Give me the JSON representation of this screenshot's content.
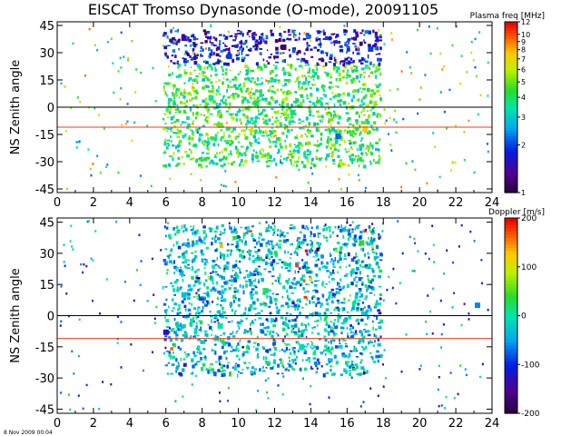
{
  "title": "EISCAT Tromso Dynasonde (O-mode),  20091105",
  "footer_stamp": "8 Nov 2009 00:04",
  "chart_data": [
    {
      "type": "heatmap",
      "name": "plasma-frequency",
      "ylabel": "NS Zenith angle",
      "xlim": [
        0,
        24
      ],
      "ylim": [
        -47,
        47
      ],
      "xticks": [
        0,
        2,
        4,
        6,
        8,
        10,
        12,
        14,
        16,
        18,
        20,
        22,
        24
      ],
      "yticks": [
        -45,
        -30,
        -15,
        0,
        15,
        30,
        45
      ],
      "reference_lines": [
        {
          "y": 0,
          "color": "#000000"
        },
        {
          "y": -11,
          "color": "#e8401a"
        }
      ],
      "colorbar": {
        "label": "Plasma freq [MHz]",
        "scale": "log",
        "range": [
          1,
          12
        ],
        "ticks": [
          1,
          2,
          3,
          4,
          5,
          6,
          7,
          8,
          9,
          10,
          12
        ]
      },
      "dense_echo_region": {
        "x": [
          5.8,
          17.8
        ],
        "y": [
          -32,
          43
        ]
      },
      "representative_cells": [
        {
          "x": 7.0,
          "y": 38,
          "value": 1.5
        },
        {
          "x": 9.5,
          "y": 28,
          "value": 2.0
        },
        {
          "x": 12.5,
          "y": 33,
          "value": 1.2
        },
        {
          "x": 8.5,
          "y": 5,
          "value": 3.5
        },
        {
          "x": 11.0,
          "y": 2,
          "value": 4.0
        },
        {
          "x": 13.0,
          "y": -3,
          "value": 3.8
        },
        {
          "x": 9.0,
          "y": -10,
          "value": 5.0
        },
        {
          "x": 15.5,
          "y": -16,
          "value": 2.2
        },
        {
          "x": 17.3,
          "y": 32,
          "value": 2.0
        },
        {
          "x": 17.0,
          "y": -12,
          "value": 7.5
        }
      ]
    },
    {
      "type": "heatmap",
      "name": "doppler",
      "ylabel": "NS Zenith angle",
      "xlim": [
        0,
        24
      ],
      "ylim": [
        -47,
        47
      ],
      "xticks": [
        0,
        2,
        4,
        6,
        8,
        10,
        12,
        14,
        16,
        18,
        20,
        22,
        24
      ],
      "yticks": [
        -45,
        -30,
        -15,
        0,
        15,
        30,
        45
      ],
      "reference_lines": [
        {
          "y": 0,
          "color": "#000000"
        },
        {
          "y": -11,
          "color": "#e8401a"
        }
      ],
      "colorbar": {
        "label": "Doppler [m/s]",
        "scale": "linear",
        "range": [
          -200,
          200
        ],
        "ticks": [
          -200,
          -100,
          0,
          100,
          200
        ]
      },
      "dense_echo_region": {
        "x": [
          5.8,
          17.8
        ],
        "y": [
          -28,
          44
        ]
      },
      "representative_cells": [
        {
          "x": 7.0,
          "y": 10,
          "value": -30
        },
        {
          "x": 9.0,
          "y": -5,
          "value": 0
        },
        {
          "x": 11.5,
          "y": 12,
          "value": 20
        },
        {
          "x": 13.5,
          "y": -15,
          "value": -10
        },
        {
          "x": 16.8,
          "y": 35,
          "value": 40
        },
        {
          "x": 6.0,
          "y": -8,
          "value": -120
        },
        {
          "x": 23.2,
          "y": 5,
          "value": -60
        }
      ]
    }
  ]
}
